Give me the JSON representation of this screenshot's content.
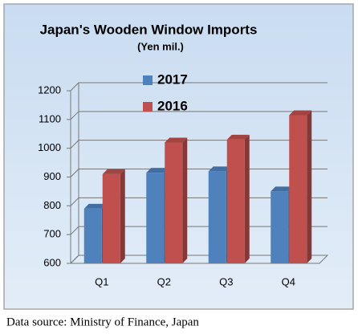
{
  "chart_data": {
    "type": "bar",
    "title": "Japan's Wooden Window Imports",
    "subtitle": "(Yen mil.)",
    "categories": [
      "Q1",
      "Q2",
      "Q3",
      "Q4"
    ],
    "series": [
      {
        "name": "2017",
        "color": "#4f81bd",
        "values": [
          790,
          915,
          920,
          850
        ]
      },
      {
        "name": "2016",
        "color": "#c0504d",
        "values": [
          910,
          1020,
          1030,
          1115
        ]
      }
    ],
    "ylim": [
      600,
      1200
    ],
    "yticks": [
      600,
      700,
      800,
      900,
      1000,
      1100,
      1200
    ],
    "grid": true,
    "source": "Data source: Ministry of Finance, Japan"
  }
}
